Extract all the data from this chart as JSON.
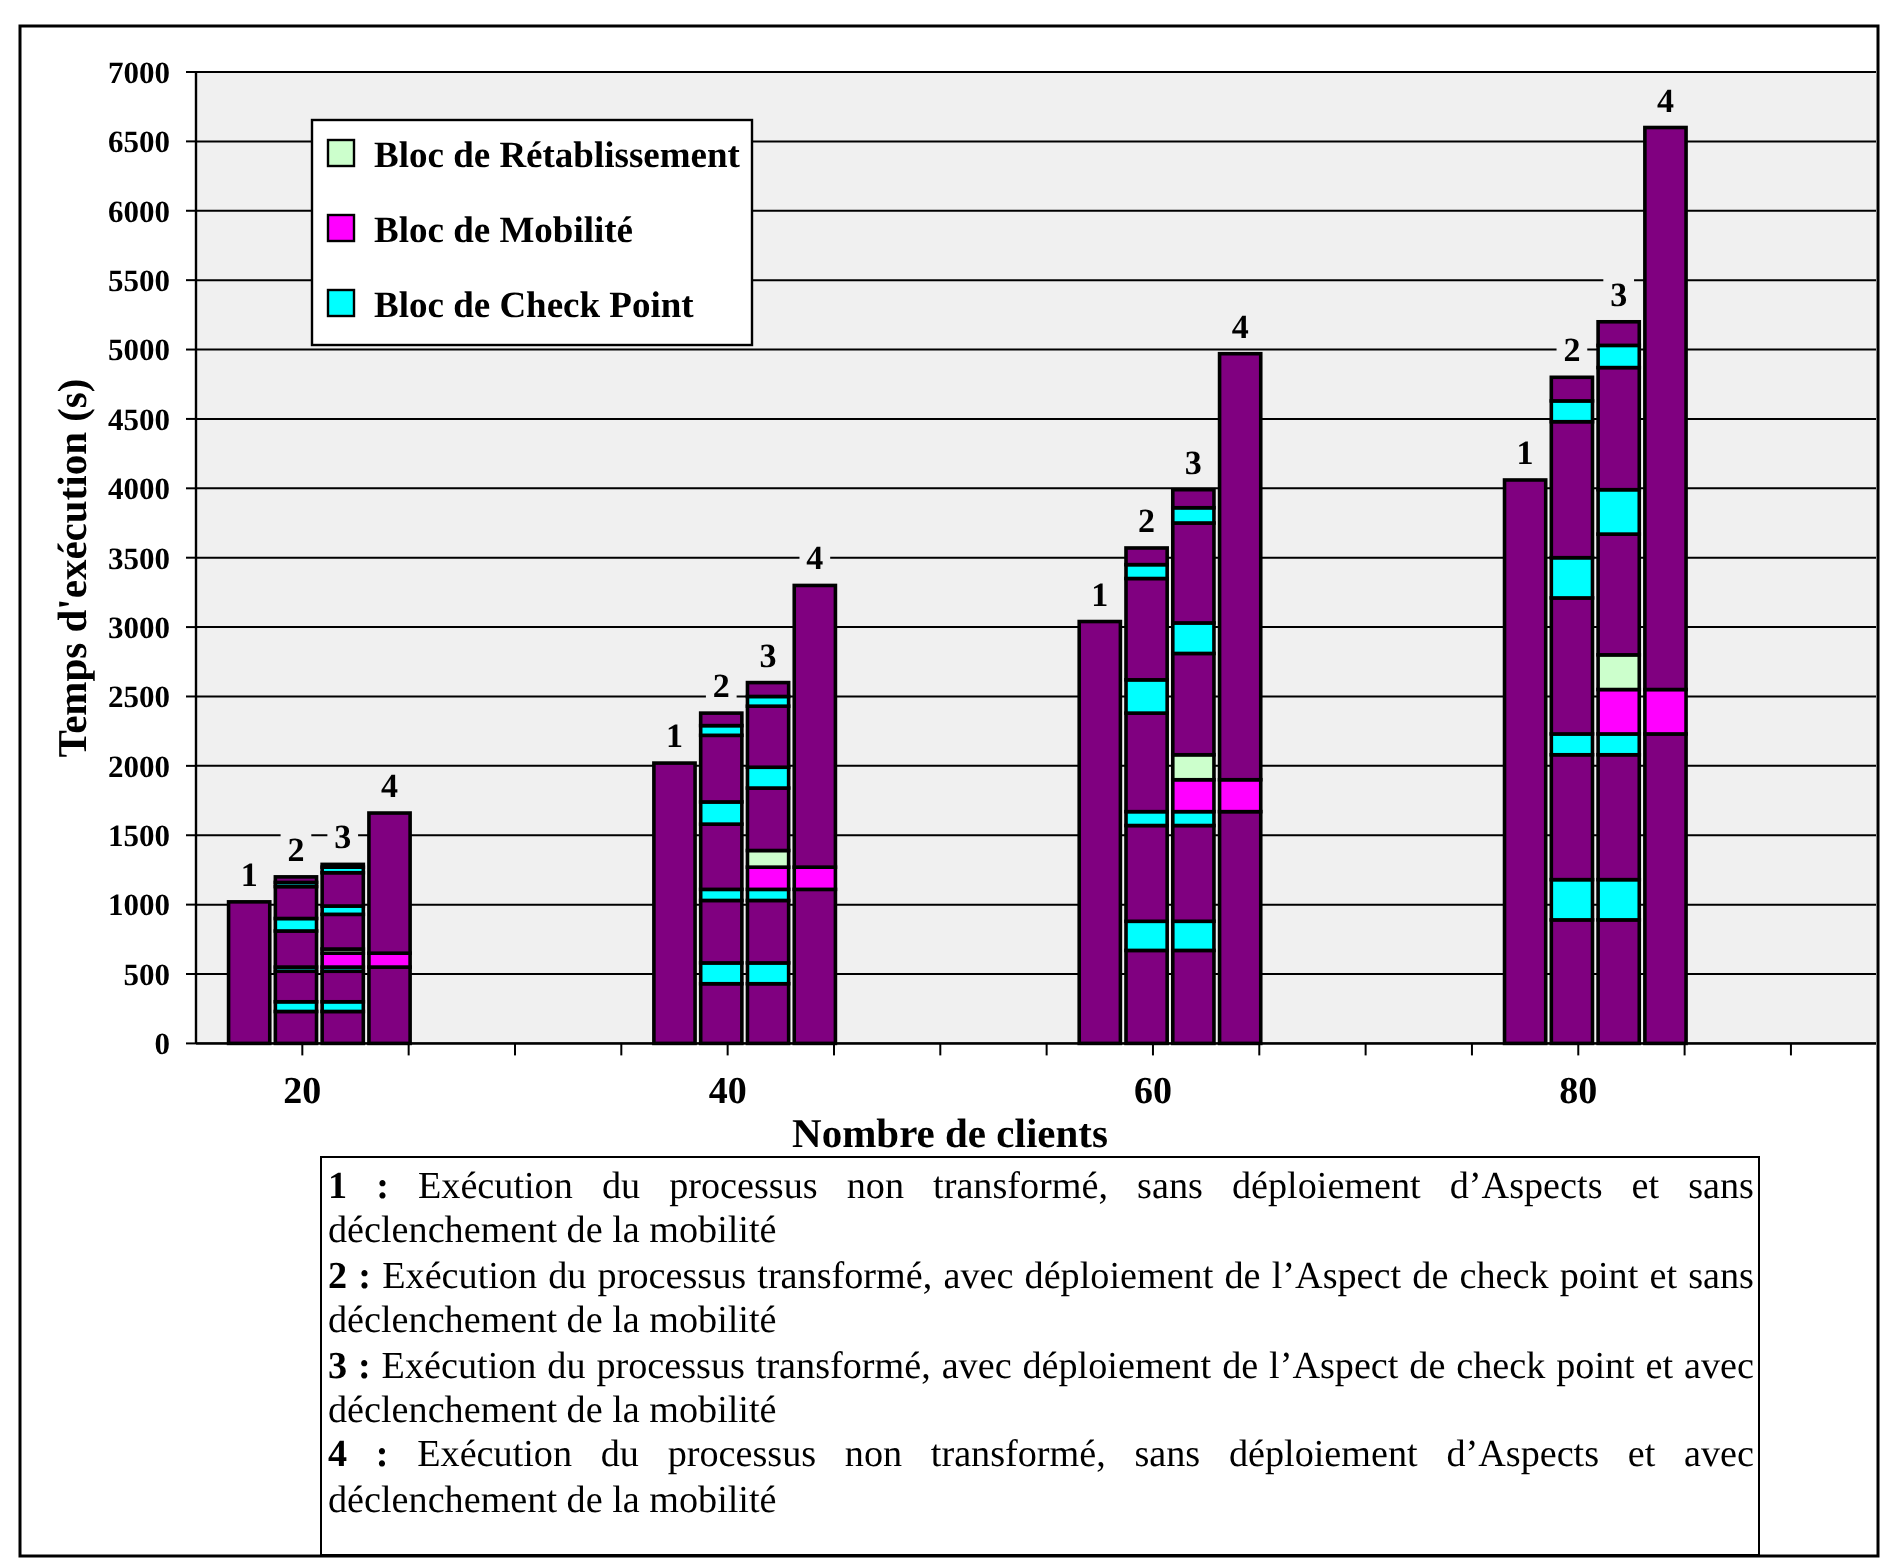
{
  "chart_data": {
    "type": "bar",
    "stacked": true,
    "xlabel": "Nombre de clients",
    "ylabel": "Temps d'exécution (s)",
    "x": [
      17.5,
      19.7,
      21.9,
      24.1,
      37.5,
      39.7,
      41.9,
      44.1,
      57.5,
      59.7,
      61.9,
      64.1,
      77.5,
      79.7,
      81.9,
      84.1
    ],
    "xlim": [
      15,
      94
    ],
    "xticks": [
      20,
      {
        "value": 25,
        "label": null
      },
      {
        "value": 30,
        "label": null
      },
      {
        "value": 35,
        "label": null
      },
      40,
      {
        "value": 45,
        "label": null
      },
      {
        "value": 50,
        "label": null
      },
      {
        "value": 55,
        "label": null
      },
      60,
      {
        "value": 65,
        "label": null
      },
      {
        "value": 70,
        "label": null
      },
      {
        "value": 75,
        "label": null
      },
      80,
      {
        "value": 85,
        "label": null
      },
      {
        "value": 90,
        "label": null
      }
    ],
    "ylim": [
      0,
      7000
    ],
    "yticks": [
      0,
      500,
      1000,
      1500,
      2000,
      2500,
      3000,
      3500,
      4000,
      4500,
      5000,
      5500,
      6000,
      6500,
      7000
    ],
    "grid": "y",
    "legend": "top left",
    "series": [
      {
        "color": "#800080",
        "values": [
          1020,
          230,
          230,
          550,
          2020,
          430,
          430,
          1110,
          3040,
          670,
          670,
          1670,
          4060,
          890,
          890,
          2230
        ]
      },
      {
        "name": "Bloc de Check Point",
        "color": "#00ffff",
        "values": [
          null,
          70,
          70,
          null,
          null,
          150,
          150,
          null,
          null,
          210,
          210,
          null,
          null,
          290,
          290,
          null
        ]
      },
      {
        "color": "#800080",
        "values": [
          null,
          220,
          220,
          null,
          null,
          450,
          450,
          null,
          null,
          690,
          690,
          null,
          null,
          900,
          900,
          null
        ]
      },
      {
        "color": "#00ffff",
        "values": [
          null,
          30,
          30,
          null,
          null,
          80,
          80,
          null,
          null,
          100,
          100,
          null,
          null,
          150,
          150,
          null
        ]
      },
      {
        "name": "Bloc de Mobilité",
        "color": "#ff00ff",
        "values": [
          null,
          null,
          100,
          100,
          null,
          null,
          160,
          160,
          null,
          null,
          230,
          230,
          null,
          null,
          320,
          320
        ]
      },
      {
        "name": "Bloc de Rétablissement",
        "color": "#ccffcc",
        "values": [
          null,
          null,
          30,
          null,
          null,
          null,
          120,
          null,
          null,
          null,
          180,
          null,
          null,
          null,
          250,
          null
        ]
      },
      {
        "color": "#800080",
        "values": [
          null,
          260,
          250,
          1010,
          null,
          470,
          450,
          2030,
          null,
          710,
          730,
          3070,
          null,
          980,
          870,
          4050
        ]
      },
      {
        "color": "#00ffff",
        "values": [
          null,
          90,
          60,
          null,
          null,
          160,
          150,
          null,
          null,
          240,
          220,
          null,
          null,
          290,
          320,
          null
        ]
      },
      {
        "color": "#800080",
        "values": [
          null,
          230,
          240,
          null,
          null,
          480,
          440,
          null,
          null,
          730,
          720,
          null,
          null,
          980,
          880,
          null
        ]
      },
      {
        "color": "#00ffff",
        "values": [
          null,
          30,
          40,
          null,
          null,
          70,
          70,
          null,
          null,
          100,
          110,
          null,
          null,
          150,
          160,
          null
        ]
      },
      {
        "color": "#800080",
        "values": [
          null,
          40,
          20,
          null,
          null,
          90,
          100,
          null,
          null,
          120,
          130,
          null,
          null,
          170,
          170,
          null
        ]
      }
    ],
    "annotations": [
      {
        "text": "1",
        "x": 17.5,
        "y": 1020
      },
      {
        "text": "2",
        "x": 19.7,
        "y": 1200
      },
      {
        "text": "3",
        "x": 21.9,
        "y": 1290
      },
      {
        "text": "4",
        "x": 24.1,
        "y": 1660
      },
      {
        "text": "1",
        "x": 37.5,
        "y": 2020
      },
      {
        "text": "2",
        "x": 39.7,
        "y": 2380
      },
      {
        "text": "3",
        "x": 41.9,
        "y": 2600
      },
      {
        "text": "4",
        "x": 44.1,
        "y": 3300
      },
      {
        "text": "1",
        "x": 57.5,
        "y": 3040
      },
      {
        "text": "2",
        "x": 59.7,
        "y": 3570
      },
      {
        "text": "3",
        "x": 61.9,
        "y": 3990
      },
      {
        "text": "4",
        "x": 64.1,
        "y": 4970
      },
      {
        "text": "1",
        "x": 77.5,
        "y": 4060
      },
      {
        "text": "2",
        "x": 79.7,
        "y": 4800
      },
      {
        "text": "3",
        "x": 81.9,
        "y": 5200
      },
      {
        "text": "4",
        "x": 84.1,
        "y": 6600
      },
      "1 : Exécution du processus non transformé, sans déploiement d’Aspects et sans déclenchement de la mobilité",
      "2 : Exécution du processus transformé, avec déploiement de l’Aspect de check point et sans déclenchement de la mobilité",
      "3 : Exécution du processus transformé, avec déploiement de l’Aspect de check point et avec déclenchement de la mobilité",
      "4 : Exécution du processus non transformé, sans déploiement d’Aspects et avec déclenchement de la mobilité"
    ]
  }
}
